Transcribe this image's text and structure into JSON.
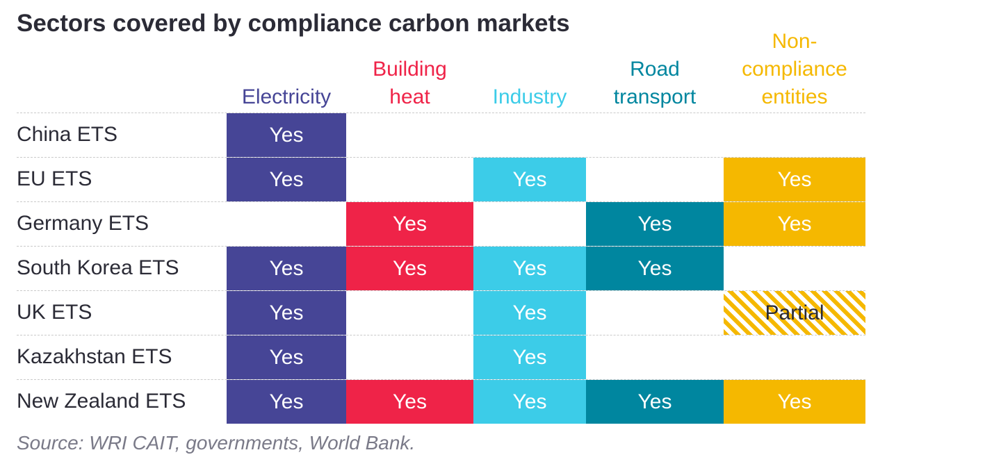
{
  "chart_data": {
    "type": "table",
    "title": "Sectors covered by compliance carbon markets",
    "columns": [
      {
        "label": "Electricity",
        "color": "#464596"
      },
      {
        "label": "Building\nheat",
        "color": "#ef2348"
      },
      {
        "label": "Industry",
        "color": "#3ccce8"
      },
      {
        "label": "Road\ntransport",
        "color": "#00869f"
      },
      {
        "label": "Non-\ncompliance\nentities",
        "color": "#f5b800"
      }
    ],
    "rows": [
      {
        "label": "China ETS",
        "cells": [
          "Yes",
          "",
          "",
          "",
          ""
        ]
      },
      {
        "label": "EU ETS",
        "cells": [
          "Yes",
          "",
          "Yes",
          "",
          "Yes"
        ]
      },
      {
        "label": "Germany ETS",
        "cells": [
          "",
          "Yes",
          "",
          "Yes",
          "Yes"
        ]
      },
      {
        "label": "South Korea ETS",
        "cells": [
          "Yes",
          "Yes",
          "Yes",
          "Yes",
          ""
        ]
      },
      {
        "label": "UK ETS",
        "cells": [
          "Yes",
          "",
          "Yes",
          "",
          "Partial"
        ]
      },
      {
        "label": "Kazakhstan ETS",
        "cells": [
          "Yes",
          "",
          "Yes",
          "",
          ""
        ]
      },
      {
        "label": "New Zealand ETS",
        "cells": [
          "Yes",
          "Yes",
          "Yes",
          "Yes",
          "Yes"
        ]
      }
    ],
    "source": "Source: WRI CAIT, governments, World Bank."
  }
}
